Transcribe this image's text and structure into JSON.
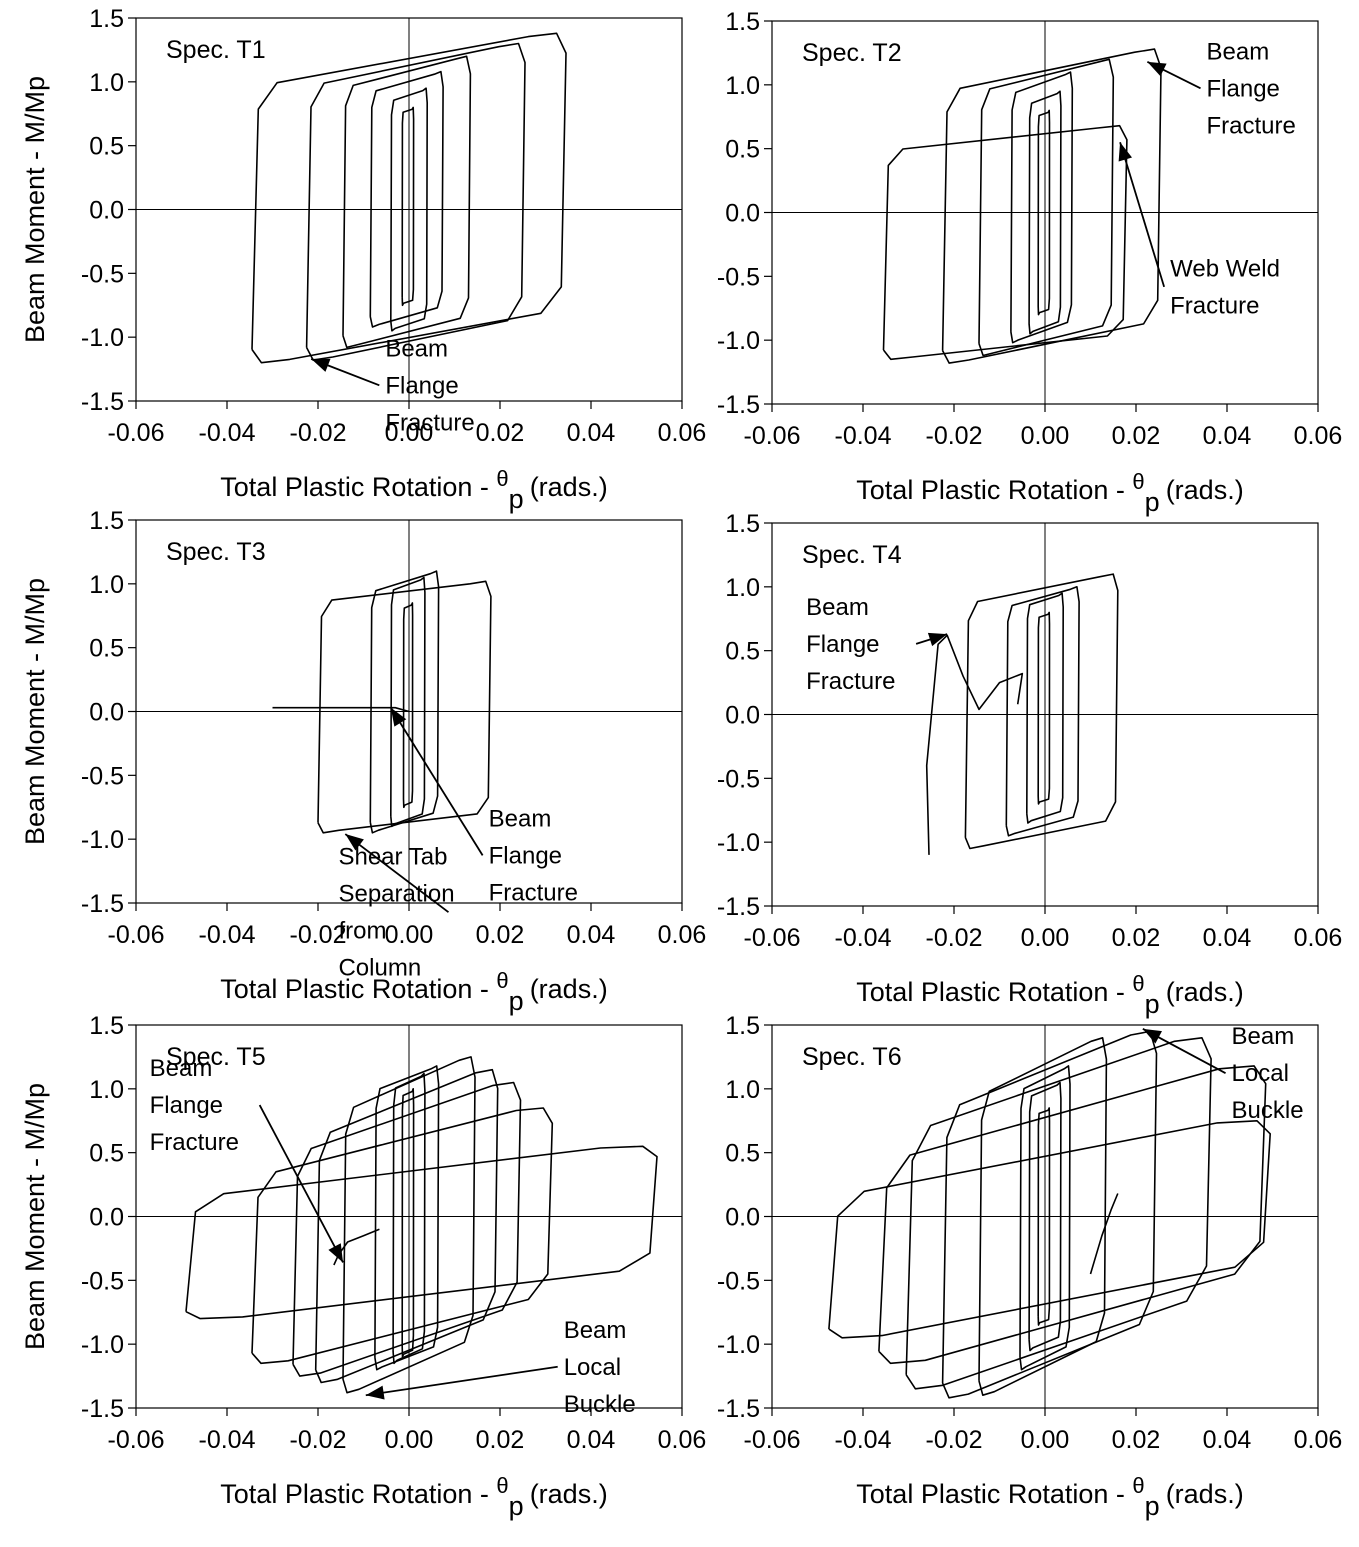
{
  "chart_data": [
    {
      "type": "line",
      "panel": "top-left",
      "spec_label": "Spec. T1",
      "xlabel_main": "Total Plastic Rotation - ",
      "xlabel_theta": "θ",
      "xlabel_sub": "p",
      "xlabel_unit": "(rads.)",
      "ylabel": "Beam Moment - M/Mp",
      "xlim": [
        -0.06,
        0.06
      ],
      "ylim": [
        -1.5,
        1.5
      ],
      "xticks": [
        "-0.06",
        "-0.04",
        "-0.02",
        "0.00",
        "0.02",
        "0.04",
        "0.06"
      ],
      "yticks": [
        "1.5",
        "1.0",
        "0.5",
        "0.0",
        "-0.5",
        "-1.0",
        "-1.5"
      ],
      "loops": [
        {
          "xmin": -0.0015,
          "xmax": 0.001,
          "ymin": -0.75,
          "ymax": 0.8,
          "lean": 0.05
        },
        {
          "xmin": -0.004,
          "xmax": 0.004,
          "ymin": -0.95,
          "ymax": 0.95,
          "lean": 0.1
        },
        {
          "xmin": -0.0085,
          "xmax": 0.0075,
          "ymin": -0.92,
          "ymax": 1.08,
          "lean": 0.15
        },
        {
          "xmin": -0.0145,
          "xmax": 0.0135,
          "ymin": -1.08,
          "ymax": 1.2,
          "lean": 0.2
        },
        {
          "xmin": -0.0225,
          "xmax": 0.0255,
          "ymin": -1.18,
          "ymax": 1.3,
          "lean": 0.25
        },
        {
          "xmin": -0.0345,
          "xmax": 0.0345,
          "ymin": -1.2,
          "ymax": 1.38,
          "lean": 0.3
        }
      ],
      "extra_curves": [],
      "annotations": [
        {
          "lines": [
            "Beam",
            "Flange",
            "Fracture"
          ],
          "at_x": -0.0052,
          "at_y": -1.15,
          "arrow_to": [
            -0.0215,
            -1.17
          ]
        }
      ]
    },
    {
      "type": "line",
      "panel": "top-right",
      "spec_label": "Spec. T2",
      "xlabel_main": "Total Plastic Rotation - ",
      "xlabel_theta": "θ",
      "xlabel_sub": "p",
      "xlabel_unit": "(rads.)",
      "ylabel": "",
      "xlim": [
        -0.06,
        0.06
      ],
      "ylim": [
        -1.5,
        1.5
      ],
      "xticks": [
        "-0.06",
        "-0.04",
        "-0.02",
        "0.00",
        "0.02",
        "0.04",
        "0.06"
      ],
      "yticks": [
        "1.5",
        "1.0",
        "0.5",
        "0.0",
        "-0.5",
        "-1.0",
        "-1.5"
      ],
      "loops": [
        {
          "xmin": -0.0015,
          "xmax": 0.001,
          "ymin": -0.8,
          "ymax": 0.8,
          "lean": 0.05
        },
        {
          "xmin": -0.0035,
          "xmax": 0.0035,
          "ymin": -0.95,
          "ymax": 0.95,
          "lean": 0.1
        },
        {
          "xmin": -0.0075,
          "xmax": 0.006,
          "ymin": -1.02,
          "ymax": 1.1,
          "lean": 0.15
        },
        {
          "xmin": -0.0145,
          "xmax": 0.015,
          "ymin": -1.12,
          "ymax": 1.2,
          "lean": 0.2
        },
        {
          "xmin": -0.0225,
          "xmax": 0.0255,
          "ymin": -1.18,
          "ymax": 1.28,
          "lean": 0.25
        },
        {
          "xmin": -0.0355,
          "xmax": 0.018,
          "ymin": -1.15,
          "ymax": 0.68,
          "lean": 0.2
        }
      ],
      "extra_curves": [],
      "annotations": [
        {
          "lines": [
            "Beam",
            "Flange",
            "Fracture"
          ],
          "at_x": 0.0355,
          "at_y": 1.2,
          "arrow_to": [
            0.0225,
            1.18
          ]
        },
        {
          "lines": [
            "Web Weld",
            "Fracture"
          ],
          "at_x": 0.0275,
          "at_y": -0.5,
          "arrow_to": [
            0.0165,
            0.55
          ]
        }
      ]
    },
    {
      "type": "line",
      "panel": "middle-left",
      "spec_label": "Spec. T3",
      "xlabel_main": "Total Plastic Rotation - ",
      "xlabel_theta": "θ",
      "xlabel_sub": "p",
      "xlabel_unit": "(rads.)",
      "ylabel": "Beam Moment - M/Mp",
      "xlim": [
        -0.06,
        0.06
      ],
      "ylim": [
        -1.5,
        1.5
      ],
      "xticks": [
        "-0.06",
        "-0.04",
        "-0.02",
        "0.00",
        "0.02",
        "0.04",
        "0.06"
      ],
      "yticks": [
        "1.5",
        "1.0",
        "0.5",
        "0.0",
        "-0.5",
        "-1.0",
        "-1.5"
      ],
      "loops": [
        {
          "xmin": -0.0012,
          "xmax": 0.0008,
          "ymin": -0.75,
          "ymax": 0.85,
          "lean": 0.05
        },
        {
          "xmin": -0.004,
          "xmax": 0.0035,
          "ymin": -0.9,
          "ymax": 1.05,
          "lean": 0.1
        },
        {
          "xmin": -0.0085,
          "xmax": 0.0065,
          "ymin": -0.95,
          "ymax": 1.1,
          "lean": 0.15
        },
        {
          "xmin": -0.02,
          "xmax": 0.018,
          "ymin": -0.95,
          "ymax": 1.02,
          "lean": 0.15
        }
      ],
      "extra_curves": [
        {
          "points": [
            [
              -0.03,
              0.03
            ],
            [
              -0.003,
              0.03
            ],
            [
              0.0,
              0.0
            ]
          ]
        }
      ],
      "annotations": [
        {
          "lines": [
            "Shear Tab",
            "Separation",
            "from",
            "Column"
          ],
          "at_x": -0.0155,
          "at_y": -1.2,
          "arrow_to": [
            -0.014,
            -0.96
          ]
        },
        {
          "lines": [
            "Beam",
            "Flange",
            "Fracture"
          ],
          "at_x": 0.0175,
          "at_y": -0.9,
          "arrow_to": [
            -0.004,
            0.03
          ]
        }
      ]
    },
    {
      "type": "line",
      "panel": "middle-right",
      "spec_label": "Spec. T4",
      "xlabel_main": "Total Plastic Rotation - ",
      "xlabel_theta": "θ",
      "xlabel_sub": "p",
      "xlabel_unit": "(rads.)",
      "ylabel": "",
      "xlim": [
        -0.06,
        0.06
      ],
      "ylim": [
        -1.5,
        1.5
      ],
      "xticks": [
        "-0.06",
        "-0.04",
        "-0.02",
        "0.00",
        "0.02",
        "0.04",
        "0.06"
      ],
      "yticks": [
        "1.5",
        "1.0",
        "0.5",
        "0.0",
        "-0.5",
        "-1.0",
        "-1.5"
      ],
      "loops": [
        {
          "xmin": -0.0015,
          "xmax": 0.001,
          "ymin": -0.7,
          "ymax": 0.8,
          "lean": 0.05
        },
        {
          "xmin": -0.004,
          "xmax": 0.004,
          "ymin": -0.85,
          "ymax": 0.95,
          "lean": 0.1
        },
        {
          "xmin": -0.0085,
          "xmax": 0.0075,
          "ymin": -0.95,
          "ymax": 1.0,
          "lean": 0.15
        },
        {
          "xmin": -0.0175,
          "xmax": 0.016,
          "ymin": -1.05,
          "ymax": 1.1,
          "lean": 0.2
        }
      ],
      "extra_curves": [
        {
          "points": [
            [
              -0.0255,
              -1.1
            ],
            [
              -0.026,
              -0.4
            ],
            [
              -0.0235,
              0.55
            ],
            [
              -0.0215,
              0.62
            ],
            [
              -0.018,
              0.3
            ],
            [
              -0.0145,
              0.04
            ],
            [
              -0.01,
              0.25
            ],
            [
              -0.005,
              0.32
            ],
            [
              -0.006,
              0.08
            ]
          ]
        }
      ],
      "annotations": [
        {
          "lines": [
            "Beam",
            "Flange",
            "Fracture"
          ],
          "at_x": -0.0525,
          "at_y": 0.78,
          "arrow_to": [
            -0.0215,
            0.63
          ]
        }
      ]
    },
    {
      "type": "line",
      "panel": "bottom-left",
      "spec_label": "Spec. T5",
      "xlabel_main": "Total Plastic Rotation - ",
      "xlabel_theta": "θ",
      "xlabel_sub": "p",
      "xlabel_unit": "(rads.)",
      "ylabel": "Beam Moment - M/Mp",
      "xlim": [
        -0.06,
        0.06
      ],
      "ylim": [
        -1.5,
        1.5
      ],
      "xticks": [
        "-0.06",
        "-0.04",
        "-0.02",
        "0.00",
        "0.02",
        "0.04",
        "0.06"
      ],
      "yticks": [
        "1.5",
        "1.0",
        "0.5",
        "0.0",
        "-0.5",
        "-1.0",
        "-1.5"
      ],
      "loops": [
        {
          "xmin": -0.0015,
          "xmax": 0.001,
          "ymin": -1.1,
          "ymax": 1.0,
          "lean": 0.05
        },
        {
          "xmin": -0.0035,
          "xmax": 0.0035,
          "ymin": -1.15,
          "ymax": 1.12,
          "lean": 0.1
        },
        {
          "xmin": -0.0075,
          "xmax": 0.0065,
          "ymin": -1.2,
          "ymax": 1.18,
          "lean": 0.15
        },
        {
          "xmin": -0.0145,
          "xmax": 0.0145,
          "ymin": -1.38,
          "ymax": 1.25,
          "lean": 0.3
        },
        {
          "xmin": -0.0205,
          "xmax": 0.0195,
          "ymin": -1.3,
          "ymax": 1.15,
          "lean": 0.4
        },
        {
          "xmin": -0.0255,
          "xmax": 0.0245,
          "ymin": -1.25,
          "ymax": 1.05,
          "lean": 0.45
        },
        {
          "xmin": -0.0345,
          "xmax": 0.0315,
          "ymin": -1.15,
          "ymax": 0.85,
          "lean": 0.5
        },
        {
          "xmin": -0.049,
          "xmax": 0.0545,
          "ymin": -0.8,
          "ymax": 0.55,
          "lean": 0.55
        }
      ],
      "extra_curves": [
        {
          "points": [
            [
              -0.0165,
              -0.38
            ],
            [
              -0.0155,
              -0.3
            ],
            [
              -0.0135,
              -0.2
            ],
            [
              -0.01,
              -0.15
            ],
            [
              -0.0065,
              -0.1
            ]
          ]
        }
      ],
      "annotations": [
        {
          "lines": [
            "Beam",
            "Flange",
            "Fracture"
          ],
          "at_x": -0.057,
          "at_y": 1.1,
          "arrow_to": [
            -0.0145,
            -0.36
          ]
        },
        {
          "lines": [
            "Beam",
            "Local",
            "Buckle"
          ],
          "at_x": 0.034,
          "at_y": -0.95,
          "arrow_to": [
            -0.0095,
            -1.4
          ]
        }
      ]
    },
    {
      "type": "line",
      "panel": "bottom-right",
      "spec_label": "Spec. T6",
      "xlabel_main": "Total Plastic Rotation - ",
      "xlabel_theta": "θ",
      "xlabel_sub": "p",
      "xlabel_unit": "(rads.)",
      "ylabel": "",
      "xlim": [
        -0.06,
        0.06
      ],
      "ylim": [
        -1.5,
        1.5
      ],
      "xticks": [
        "-0.06",
        "-0.04",
        "-0.02",
        "0.00",
        "0.02",
        "0.04",
        "0.06"
      ],
      "yticks": [
        "1.5",
        "1.0",
        "0.5",
        "0.0",
        "-0.5",
        "-1.0",
        "-1.5"
      ],
      "loops": [
        {
          "xmin": -0.0015,
          "xmax": 0.001,
          "ymin": -0.85,
          "ymax": 0.85,
          "lean": 0.05
        },
        {
          "xmin": -0.0035,
          "xmax": 0.0035,
          "ymin": -1.05,
          "ymax": 1.05,
          "lean": 0.1
        },
        {
          "xmin": -0.0055,
          "xmax": 0.0055,
          "ymin": -1.2,
          "ymax": 1.18,
          "lean": 0.15
        },
        {
          "xmin": -0.0145,
          "xmax": 0.0135,
          "ymin": -1.4,
          "ymax": 1.4,
          "lean": 0.3
        },
        {
          "xmin": -0.0225,
          "xmax": 0.0245,
          "ymin": -1.42,
          "ymax": 1.45,
          "lean": 0.4
        },
        {
          "xmin": -0.0305,
          "xmax": 0.0365,
          "ymin": -1.35,
          "ymax": 1.4,
          "lean": 0.5
        },
        {
          "xmin": -0.0365,
          "xmax": 0.0485,
          "ymin": -1.15,
          "ymax": 1.18,
          "lean": 0.6
        },
        {
          "xmin": -0.0475,
          "xmax": 0.0495,
          "ymin": -0.95,
          "ymax": 0.75,
          "lean": 0.65
        }
      ],
      "extra_curves": [
        {
          "points": [
            [
              0.01,
              -0.45
            ],
            [
              0.0125,
              -0.15
            ],
            [
              0.0145,
              0.05
            ],
            [
              0.016,
              0.18
            ]
          ]
        }
      ],
      "annotations": [
        {
          "lines": [
            "Beam",
            "Local",
            "Buckle"
          ],
          "at_x": 0.041,
          "at_y": 1.35,
          "arrow_to": [
            0.0215,
            1.47
          ]
        }
      ]
    }
  ]
}
